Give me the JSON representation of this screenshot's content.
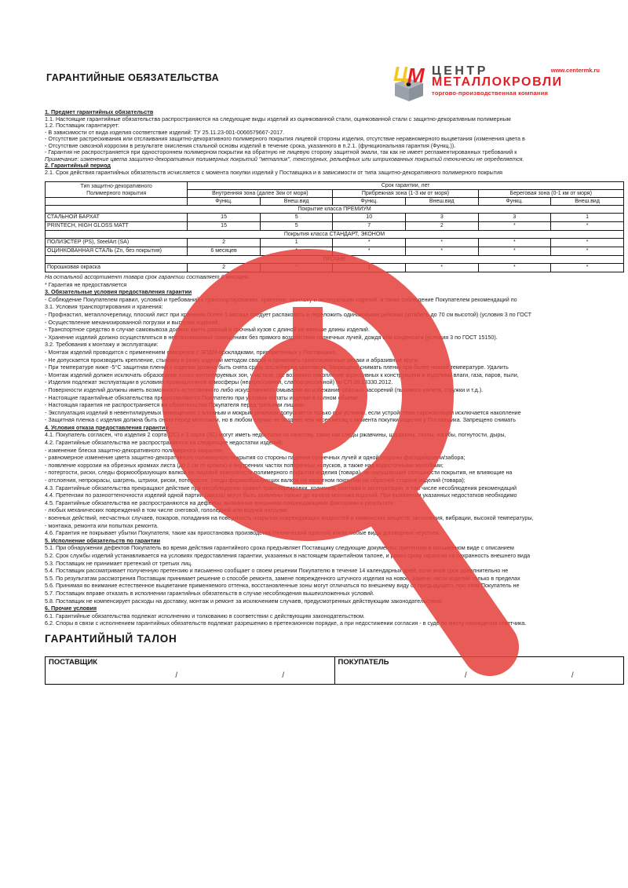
{
  "header": {
    "title": "ГАРАНТИЙНЫЕ ОБЯЗАТЕЛЬСТВА",
    "logo": {
      "line1": "ЦЕНТР",
      "line2": "МЕТАЛЛОКРОВЛИ",
      "url": "www.centermk.ru",
      "tagline": "торгово-производственная компания"
    }
  },
  "colors": {
    "brand_red": "#e31e24",
    "brand_yellow": "#f6c51e",
    "brand_gray": "#99a1ab",
    "logo_dark": "#47474a",
    "watermark_red": "#e5433d"
  },
  "document": {
    "lines_before_table": [
      {
        "style": "heading",
        "text": "1. Предмет гарантийных обязательств"
      },
      {
        "style": "normal",
        "text": "1.1. Настоящие гарантийные обязательства распространяются на следующие виды изделий из оцинкованной стали, оцинкованной стали с защитно-декоративным полимерным"
      },
      {
        "style": "normal",
        "text": "1.2. Поставщик гарантирует:"
      },
      {
        "style": "normal",
        "text": "- В зависимости от вида изделия соответствие изделий: ТУ 25.11.23-001-0066579667-2017."
      },
      {
        "style": "normal",
        "text": "- Отсутствие растрескивания или отслаивания защитно-декоративного полимерного покрытия лицевой стороны изделия, отсутствие неравномерного выцветания (изменения цвета в"
      },
      {
        "style": "normal",
        "text": "- Отсутствие сквозной коррозии в результате окисления стальной основы изделий в течение срока, указанного в п.2.1. (функциональная гарантия (Функц.))."
      },
      {
        "style": "normal",
        "text": "- Гарантия не распространяется при одностороннем полимерном покрытии на обратную не лицевую сторону защитной эмали, так как не имеет регламентированных требований к"
      },
      {
        "style": "italic",
        "text": "Примечание: изменение цвета защитно-декоративных полимерных покрытий \"металлик\", текстурных, рельефных или штрихованных покрытий технически не определяется."
      },
      {
        "style": "heading",
        "text": "2. Гарантийный период"
      },
      {
        "style": "normal",
        "text": "2.1. Срок действия гарантийных обязательств исчисляется с момента покупки изделий у Поставщика и в зависимости от типа защитно-декоративного полимерного покрытия"
      }
    ],
    "lines_after_table": [
      {
        "style": "italic",
        "text": "На остальной ассортимент товара срок гарантии составляет 6 месяцев."
      },
      {
        "style": "normal",
        "text": "* Гарантия не предоставляется"
      },
      {
        "style": "heading",
        "text": "3. Обязательные условия предоставления гарантии"
      },
      {
        "style": "normal",
        "text": "- Соблюдение Покупателем правил, условий и требований к транспортированию, хранению, монтажу и эксплуатации изделий, а также соблюдение Покупателем рекомендаций по"
      },
      {
        "style": "normal",
        "text": "3.1. Условия транспортирования и хранения:"
      },
      {
        "style": "normal",
        "text": "- Профнастил, металлочерепицу, плоский лист при хранении более 1 месяца следует распаковать и переложить одинаковыми рейками (штабель до 70 см высотой) (условия 3 по ГОСТ"
      },
      {
        "style": "normal",
        "text": "- Осуществление механизированной погрузки и выгрузки изделий."
      },
      {
        "style": "normal",
        "text": "- Транспортное средство в случае самовывоза должно иметь ровный и прочный кузов с длиной не меньше длины изделий."
      },
      {
        "style": "normal",
        "text": "- Хранение изделий должно осуществляться в неотапливаемых помещениях без прямого воздействия солнечных лучей, дождя или конденсата (условия 3 по ГОСТ 15150)."
      },
      {
        "style": "normal",
        "text": "3.2. Требования к монтажу и эксплуатации:"
      },
      {
        "style": "normal",
        "text": "- Монтаж изделий проводится с применением саморезов с ЭПДМ-прокладками, приобретенных у Поставщика."
      },
      {
        "style": "normal",
        "text": "- Не допускается производить крепление, стыковку и резку изделий методом сварки и применять газоплазменные резаки и абразивные круги."
      },
      {
        "style": "normal",
        "text": "- При температуре ниже -5°С защитная пленка с изделия должна быть снята сразу после/перед монтажом. Запрещено снимать пленку при более низкой температуре. Удалить"
      },
      {
        "style": "normal",
        "text": "- Монтаж изделий должен исключать образование плохо вентилируемых зон, участков, где возможно накопление агрессивных к конструкциям и изделиям влаги, газа, паров, пыли,"
      },
      {
        "style": "normal",
        "text": "- Изделия подлежат эксплуатации в условиях промышленной атмосферы (неагрессивной, слабоагрессивной) по СП 28.13330.2012."
      },
      {
        "style": "normal",
        "text": "- Поверхности изделий должны иметь возможность естественного либо искусственного омывания во избежание опасных засорений (пылевого налета, стружки и т.д.)."
      },
      {
        "style": "normal",
        "text": "- Настоящие гарантийные обязательства предоставляются Покупателю при условии оплаты изделия в полном объеме."
      },
      {
        "style": "normal",
        "text": "- Настоящая гарантия не распространяется на обязательства Покупателя перед третьими лицами."
      },
      {
        "style": "normal",
        "text": "- Эксплуатация изделий в невентилируемых помещениях с влажным и мокрым режимом допускается только при условии, если устройством пароизоляции исключается накопление"
      },
      {
        "style": "normal",
        "text": "- Защитная пленка с изделия должна быть снята перед монтажом, но в любом случае не позднее чем через месяц с момента покупки изделия у Поставщика. Запрещено снимать"
      },
      {
        "style": "heading",
        "text": "4. Условия отказа предоставления гарантии"
      },
      {
        "style": "normal",
        "text": "4.1. Покупатель согласен, что изделия 2 сорта (2С) и 3 сорта (3С) могут иметь недостатки по качеству, такие как следы ржавчины, царапины, сколы, изгибы, погнутости, дыры,"
      },
      {
        "style": "normal",
        "text": "4.2. Гарантийные обязательства не распространяются на следующие недостатки изделий:"
      },
      {
        "style": "normal",
        "text": "- изменение блеска защитно-декоративного полимерного покрытия;"
      },
      {
        "style": "normal",
        "text": "- равномерное изменение цвета защитно-декоративного полимерного покрытия со стороны падения солнечных лучей и одной стороны фасада/кровли/забора;"
      },
      {
        "style": "normal",
        "text": "- появление коррозии на обрезных кромках листа (до 1 см от кромок) и внутренних частях поперечных напусков, а также над водосточными желобами;"
      },
      {
        "style": "normal",
        "text": "- потертости, риски, следы формообразующих валков на лицевой поверхности полимерного покрытия изделия (товара), не нарушающие сплошности покрытия, не влияющие на"
      },
      {
        "style": "normal",
        "text": "- отслоения, непрокрасы, шагрень, штрихи, риски, потертости, следы формообразующих валков на защитном покрытии на обратной стороне изделий (товара);"
      },
      {
        "style": "normal",
        "text": "4.3. Гарантийные обязательства прекращают действие при несоблюдении правил транспортировки, хранения, монтажа и эксплуатации, в том числе несоблюдения рекомендаций"
      },
      {
        "style": "normal",
        "text": "4.4. Претензии по разнооттеночности изделий одной партии (заказа) могут быть заявлены только до начала монтажа изделий. При выявлении указанных недостатков необходимо"
      },
      {
        "style": "normal",
        "text": "4.5. Гарантийные обязательства не распространяются на дефекты, вызванные внешними повреждающими факторами в результате:"
      },
      {
        "style": "normal",
        "text": "- любых механических повреждений в том числе снеговой, гололедной или водной нагрузки;"
      },
      {
        "style": "normal",
        "text": "- военных действий, несчастных случаев, пожаров, попадания на поверхность покрытия повреждающих жидкостей и химических веществ, затопления, вибрации, высокой температуры,"
      },
      {
        "style": "normal",
        "text": "- монтажа, ремонта или попытках ремонта."
      },
      {
        "style": "normal",
        "text": "4.6. Гарантия не покрывает убытки Покупателя, такие как приостановка производства (технический простой) и/или любые виды договорных неустоек."
      },
      {
        "style": "heading",
        "text": "5. Исполнение обязательств по гарантии"
      },
      {
        "style": "normal",
        "text": "5.1. При обнаружении дефектов Покупатель во время действия гарантийного срока предъявляет Поставщику следующие документы: претензию в письменном виде с описанием"
      },
      {
        "style": "normal",
        "text": "5.2. Срок службы изделий устанавливается на условиях предоставления гарантии, указанных в настоящем гарантийном талоне, и равен сроку гарантии на сохранность внешнего вида"
      },
      {
        "style": "normal",
        "text": "5.3. Поставщик не принимает претензий от третьих лиц."
      },
      {
        "style": "normal",
        "text": "5.4. Поставщик рассматривает полученную претензию и письменно сообщает о своем решении Покупателю в течение 14 календарных дней, если иной срок дополнительно не"
      },
      {
        "style": "normal",
        "text": "5.5. По результатам рассмотрения Поставщик принимает решение о способе ремонта, замене поврежденного штучного изделия на новое, замене части изделий только в пределах"
      },
      {
        "style": "normal",
        "text": "5.6. Принимая во внимание естественное выцветание применяемого оттенка, восстановленные зоны могут отличаться по внешнему виду от предыдущего, при этом Покупатель не"
      },
      {
        "style": "normal",
        "text": "5.7. Поставщик вправе отказать в исполнении гарантийных обязательств в случае несоблюдения вышеизложенных условий."
      },
      {
        "style": "normal",
        "text": "5.8. Поставщик не компенсирует расходы на доставку, монтаж и ремонт за исключением случаев, предусмотренных действующим законодательством."
      },
      {
        "style": "heading",
        "text": "6. Прочие условия"
      },
      {
        "style": "normal",
        "text": "6.1. Гарантийные обязательства подлежат исполнению и толкованию в соответствии с действующим законодательством."
      },
      {
        "style": "normal",
        "text": "6.2. Споры в связи с исполнением гарантийных обязательств подлежат разрешению в претензионном порядке, а при недостижении согласия - в суде по месту нахождения ответчика."
      }
    ]
  },
  "warranty_table": {
    "col1_header_line1": "Тип защитно-декоративного",
    "col1_header_line2": "Полимерного покрытия",
    "main_header": "Срок гарантии, лет",
    "zones": [
      "Внутренняя зона (далее 3км от моря)",
      "Прибрежная зона (1-3 км от моря)",
      "Береговая зона (0-1 км от моря)"
    ],
    "sub_headers": [
      "Функц.",
      "Внеш.вид"
    ],
    "rows": [
      {
        "type": "group",
        "label": "Покрытие класса ПРЕМИУМ"
      },
      {
        "type": "data",
        "label": "СТАЛЬНОЙ БАРХАТ",
        "values": [
          "15",
          "5",
          "10",
          "3",
          "3",
          "1"
        ]
      },
      {
        "type": "data",
        "label": "PRINTECH, HIGH GLOSS MATT",
        "values": [
          "15",
          "5",
          "7",
          "2",
          "*",
          "*"
        ]
      },
      {
        "type": "group",
        "label": "Покрытия класса СТАНДАРТ, ЭКОНОМ"
      },
      {
        "type": "data",
        "label": "ПОЛИЭСТЕР (PS),  SteelArt (SA)",
        "values": [
          "2",
          "1",
          "*",
          "*",
          "*",
          "*"
        ]
      },
      {
        "type": "data",
        "label": "ОЦИНКОВАННАЯ СТАЛЬ (Zn, без покрытия)",
        "values": [
          "6 месяцев",
          "*",
          "*",
          "*",
          "*",
          "*"
        ]
      },
      {
        "type": "group",
        "label": "ПРОЧИЕ"
      },
      {
        "type": "data",
        "label": "Порошковая окраска",
        "values": [
          "2",
          "*",
          "1",
          "*",
          "*",
          "*"
        ]
      }
    ]
  },
  "coupon": {
    "title": "ГАРАНТИЙНЫЙ ТАЛОН",
    "supplier_label": "ПОСТАВЩИК",
    "buyer_label": "ПОКУПАТЕЛЬ",
    "slash": "/"
  },
  "watermark": {
    "symbol": "Ф"
  }
}
